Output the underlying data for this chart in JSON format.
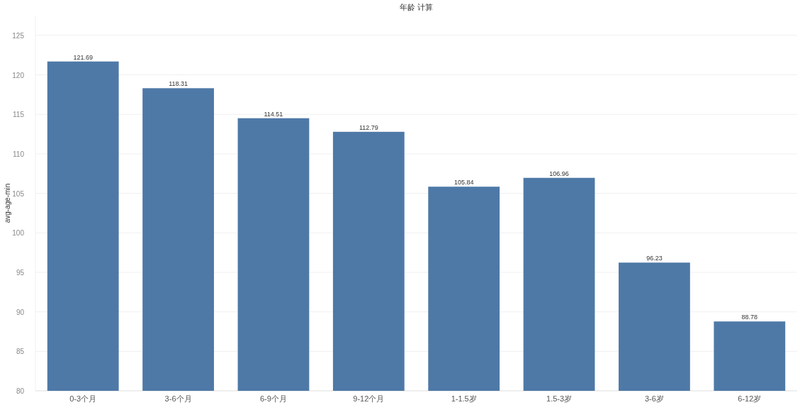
{
  "chart_data": {
    "type": "bar",
    "title": "年龄 计算",
    "ylabel": "avg-age-min",
    "categories": [
      "0-3个月",
      "3-6个月",
      "6-9个月",
      "9-12个月",
      "1-1.5岁",
      "1.5-3岁",
      "3-6岁",
      "6-12岁"
    ],
    "values": [
      121.69,
      118.31,
      114.51,
      112.79,
      105.84,
      106.96,
      96.23,
      88.78
    ],
    "color": "#4e79a7",
    "ylim": [
      80,
      127.5
    ],
    "yticks": [
      80,
      85,
      90,
      95,
      100,
      105,
      110,
      115,
      120,
      125
    ],
    "grid": "y",
    "data_labels": true
  }
}
